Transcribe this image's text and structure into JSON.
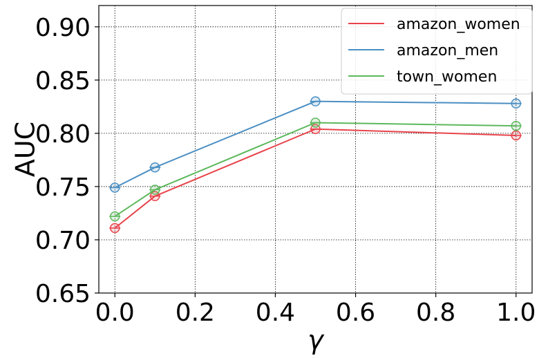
{
  "chart_data": {
    "type": "line",
    "xlabel": "γ",
    "ylabel": "AUC",
    "xlim": [
      -0.04,
      1.04
    ],
    "ylim": [
      0.65,
      0.92
    ],
    "xticks": [
      "0.0",
      "0.2",
      "0.4",
      "0.6",
      "0.8",
      "1.0"
    ],
    "xtick_values": [
      0.0,
      0.2,
      0.4,
      0.6,
      0.8,
      1.0
    ],
    "yticks": [
      "0.65",
      "0.70",
      "0.75",
      "0.80",
      "0.85",
      "0.90"
    ],
    "ytick_values": [
      0.65,
      0.7,
      0.75,
      0.8,
      0.85,
      0.9
    ],
    "grid": true,
    "legend_position": "top-right",
    "x": [
      0.0,
      0.1,
      0.5,
      1.0
    ],
    "series": [
      {
        "name": "amazon_women",
        "color": "#e8434b",
        "values": [
          0.711,
          0.741,
          0.804,
          0.798
        ]
      },
      {
        "name": "amazon_men",
        "color": "#4a8ec2",
        "values": [
          0.749,
          0.768,
          0.83,
          0.828
        ]
      },
      {
        "name": "town_women",
        "color": "#5cb85c",
        "values": [
          0.722,
          0.747,
          0.81,
          0.807
        ]
      }
    ]
  }
}
